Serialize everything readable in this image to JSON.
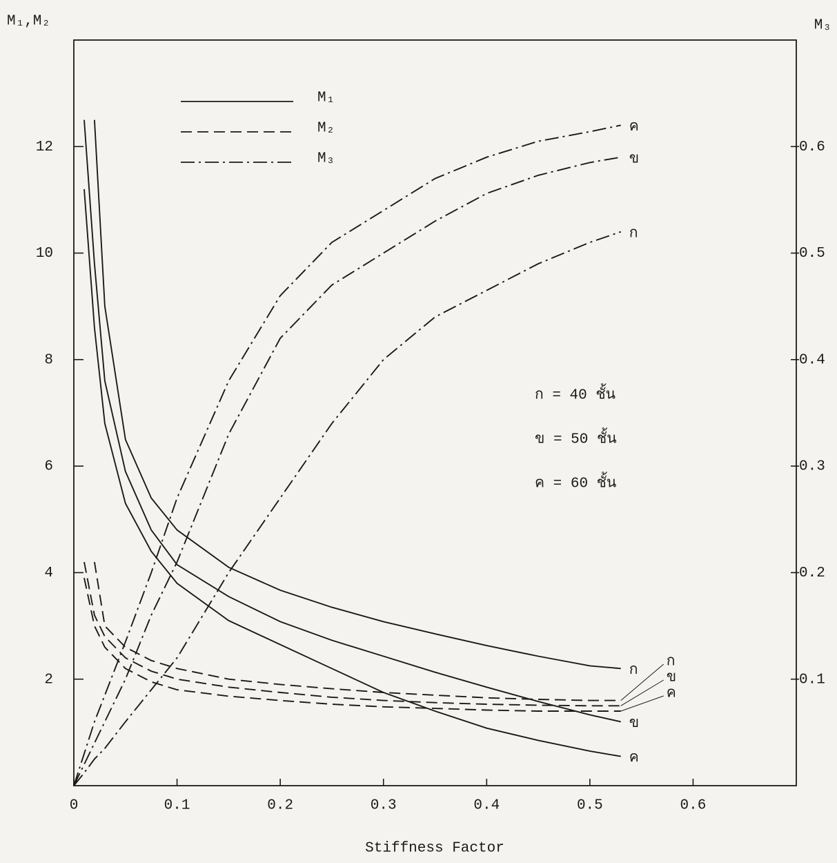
{
  "chart_data": {
    "type": "line",
    "xlabel": "Stiffness Factor",
    "ylabel": "M₁,M₂",
    "y2label": "M₃",
    "xlim": [
      0,
      0.7
    ],
    "ylim": [
      0,
      14
    ],
    "y2lim": [
      0,
      0.7
    ],
    "xticks": [
      0,
      0.1,
      0.2,
      0.3,
      0.4,
      0.5,
      0.6
    ],
    "yticks": [
      2,
      4,
      6,
      8,
      10,
      12
    ],
    "y2ticks": [
      0.1,
      0.2,
      0.3,
      0.4,
      0.5,
      0.6
    ],
    "grid": false,
    "legend": {
      "position": "upper left",
      "entries": [
        {
          "label": "M₁",
          "style": "solid"
        },
        {
          "label": "M₂",
          "style": "dashed"
        },
        {
          "label": "M₃",
          "style": "dashdot"
        }
      ]
    },
    "annotations": [
      "ก = 40 ชั้น",
      "ข = 50 ชั้น",
      "ค = 60 ชั้น"
    ],
    "x": [
      0,
      0.01,
      0.02,
      0.03,
      0.05,
      0.075,
      0.1,
      0.15,
      0.2,
      0.25,
      0.3,
      0.35,
      0.4,
      0.45,
      0.5,
      0.53
    ],
    "series": [
      {
        "name": "ก",
        "style": "solid",
        "color": "#1a1a1a",
        "values": [
          null,
          null,
          12.5,
          9.0,
          6.5,
          5.4,
          4.8,
          4.1,
          3.67,
          3.35,
          3.08,
          2.85,
          2.63,
          2.43,
          2.25,
          2.2
        ]
      },
      {
        "name": "ข",
        "style": "solid",
        "color": "#1a1a1a",
        "values": [
          null,
          12.5,
          9.8,
          7.6,
          5.9,
          4.8,
          4.15,
          3.55,
          3.08,
          2.73,
          2.43,
          2.13,
          1.85,
          1.58,
          1.33,
          1.2
        ]
      },
      {
        "name": "ค",
        "style": "solid",
        "color": "#1a1a1a",
        "values": [
          null,
          11.2,
          8.6,
          6.8,
          5.3,
          4.4,
          3.8,
          3.1,
          2.65,
          2.2,
          1.75,
          1.4,
          1.08,
          0.85,
          0.65,
          0.55
        ]
      },
      {
        "name": "ก",
        "style": "dashed",
        "color": "#1a1a1a",
        "values": [
          null,
          null,
          4.2,
          3.0,
          2.6,
          2.35,
          2.2,
          2.0,
          1.9,
          1.82,
          1.75,
          1.7,
          1.65,
          1.62,
          1.6,
          1.6
        ]
      },
      {
        "name": "ข",
        "style": "dashed",
        "color": "#1a1a1a",
        "values": [
          null,
          4.2,
          3.2,
          2.8,
          2.4,
          2.15,
          2.0,
          1.85,
          1.75,
          1.66,
          1.6,
          1.56,
          1.53,
          1.51,
          1.5,
          1.5
        ]
      },
      {
        "name": "ค",
        "style": "dashed",
        "color": "#1a1a1a",
        "values": [
          null,
          3.9,
          3.0,
          2.6,
          2.2,
          1.95,
          1.8,
          1.68,
          1.6,
          1.53,
          1.48,
          1.45,
          1.42,
          1.4,
          1.4,
          1.4
        ]
      },
      {
        "name": "ค",
        "style": "dashdot",
        "axis": "y2",
        "color": "#1a1a1a",
        "values": [
          0,
          0.03,
          0.06,
          0.085,
          0.135,
          0.2,
          0.27,
          0.38,
          0.46,
          0.51,
          0.54,
          0.57,
          0.59,
          0.605,
          0.614,
          0.62
        ]
      },
      {
        "name": "ข",
        "style": "dashdot",
        "axis": "y2",
        "color": "#1a1a1a",
        "values": [
          0,
          0.02,
          0.04,
          0.06,
          0.1,
          0.16,
          0.21,
          0.33,
          0.42,
          0.47,
          0.5,
          0.53,
          0.556,
          0.573,
          0.585,
          0.59
        ]
      },
      {
        "name": "ก",
        "style": "dashdot",
        "axis": "y2",
        "color": "#1a1a1a",
        "values": [
          0,
          0.012,
          0.025,
          0.035,
          0.06,
          0.09,
          0.12,
          0.2,
          0.27,
          0.34,
          0.4,
          0.44,
          0.465,
          0.49,
          0.51,
          0.52
        ]
      }
    ]
  }
}
